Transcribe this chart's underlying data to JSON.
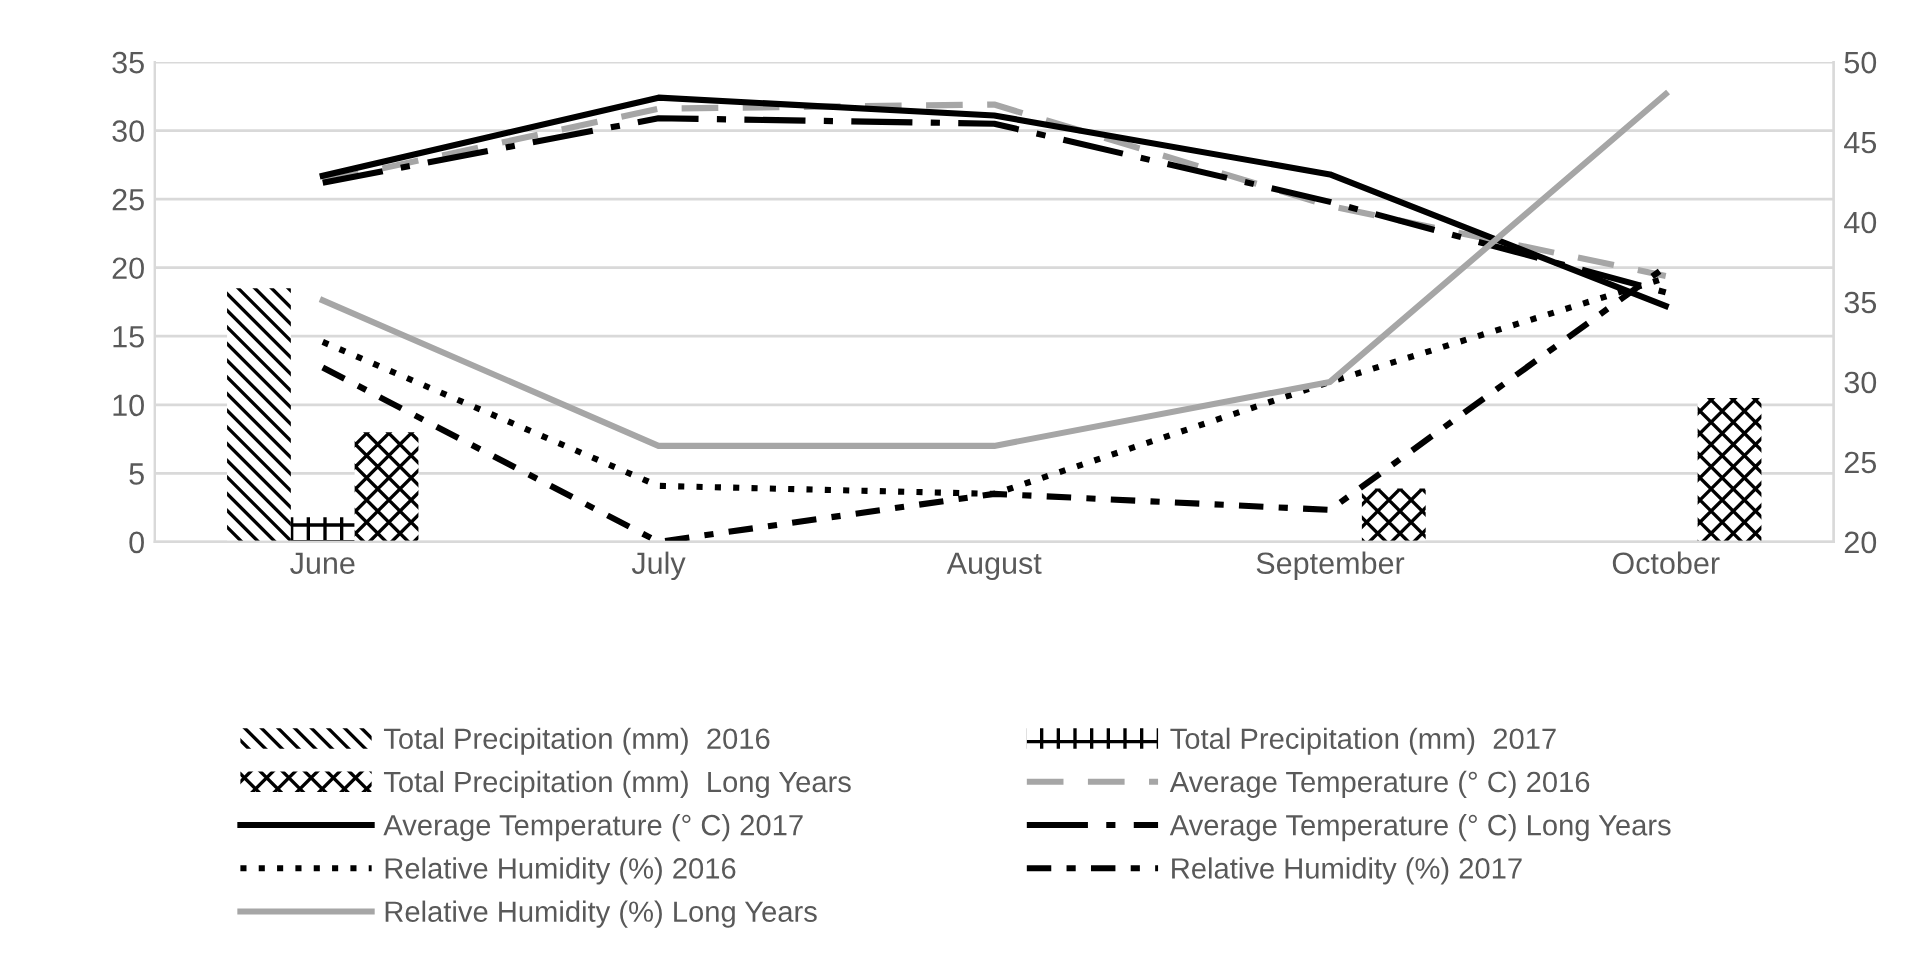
{
  "chart_data": {
    "type": "bar",
    "categories": [
      "June",
      "July",
      "August",
      "September",
      "October"
    ],
    "ylim": [
      0,
      35
    ],
    "yticks": [
      0,
      5,
      10,
      15,
      20,
      25,
      30,
      35
    ],
    "y2lim": [
      20,
      50
    ],
    "y2ticks": [
      20,
      25,
      30,
      35,
      40,
      45,
      50
    ],
    "grid": "y",
    "legend": "bottom",
    "series": [
      {
        "name": "Total Precipitation (mm)  2016",
        "color": "#000000",
        "values": [
          18.5,
          0,
          0,
          0,
          0
        ]
      },
      {
        "name": "Total Precipitation (mm)  2017",
        "color": "#000000",
        "values": [
          1.8,
          0,
          0,
          0,
          0
        ]
      },
      {
        "name": "Total Precipitation (mm)  Long Years",
        "color": "#000000",
        "values": [
          8,
          0,
          0,
          3.9,
          10.5
        ]
      },
      {
        "name": "Average Temperature (° C) 2016",
        "type": "line",
        "color": "#a6a6a6",
        "line_style": "dashed",
        "values": [
          26.3,
          31.6,
          31.9,
          24.5,
          19.4
        ]
      },
      {
        "name": "Average Temperature (° C) 2017",
        "type": "line",
        "color": "#000000",
        "line_style": "solid",
        "values": [
          26.7,
          32.4,
          31.1,
          26.8,
          17.2
        ]
      },
      {
        "name": "Average Temperature (° C) Long Years",
        "type": "line",
        "color": "#000000",
        "line_style": "longdash",
        "values": [
          26.2,
          30.9,
          30.5,
          24.8,
          18.2
        ]
      },
      {
        "name": "Relative Humidity (%) 2016",
        "type": "line",
        "axis": "y2",
        "color": "#000000",
        "line_style": "dotted",
        "values": [
          32.5,
          23.5,
          23,
          30,
          36.5
        ]
      },
      {
        "name": "Relative Humidity (%) 2017",
        "type": "line",
        "axis": "y2",
        "color": "#000000",
        "line_style": "dashdot",
        "values": [
          30.9,
          20,
          23,
          22,
          37.2
        ]
      },
      {
        "name": "Relative Humidity (%) Long Years",
        "type": "line",
        "axis": "y2",
        "color": "#a6a6a6",
        "line_style": "solid",
        "values": [
          35.1,
          26,
          26,
          30,
          48
        ]
      }
    ]
  }
}
